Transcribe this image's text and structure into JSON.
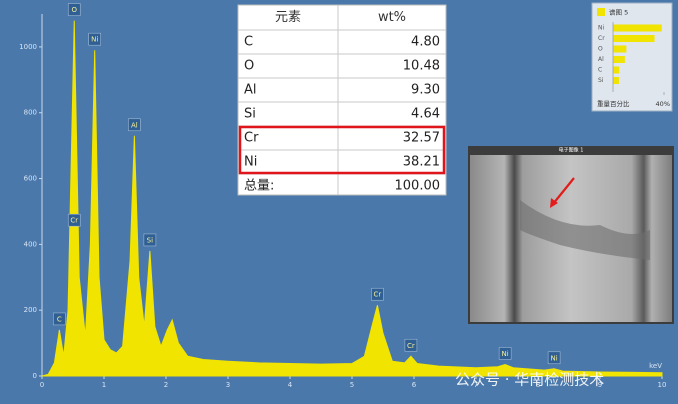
{
  "chart_data": [
    {
      "type": "area",
      "color": "#f0e400",
      "x": [
        0.0,
        0.1,
        0.2,
        0.28,
        0.35,
        0.42,
        0.52,
        0.6,
        0.7,
        0.78,
        0.85,
        0.92,
        1.0,
        1.1,
        1.2,
        1.3,
        1.42,
        1.49,
        1.56,
        1.65,
        1.74,
        1.82,
        1.92,
        2.02,
        2.1,
        2.2,
        2.35,
        2.6,
        3.0,
        3.5,
        4.0,
        4.5,
        5.0,
        5.2,
        5.32,
        5.41,
        5.5,
        5.65,
        5.85,
        5.95,
        6.05,
        6.4,
        7.0,
        7.35,
        7.47,
        7.6,
        8.1,
        8.26,
        8.4,
        9.0,
        10.0
      ],
      "values": [
        0,
        5,
        40,
        140,
        60,
        200,
        1080,
        300,
        120,
        400,
        990,
        300,
        110,
        80,
        70,
        90,
        350,
        730,
        300,
        150,
        380,
        150,
        90,
        140,
        170,
        100,
        60,
        50,
        45,
        40,
        38,
        36,
        38,
        60,
        150,
        215,
        130,
        45,
        40,
        60,
        38,
        30,
        25,
        28,
        35,
        25,
        18,
        22,
        15,
        12,
        10
      ],
      "xlim": [
        0,
        10
      ],
      "xticks": [
        0,
        1,
        2,
        3,
        4,
        5,
        6,
        7,
        8,
        9,
        10
      ],
      "xlabel": "keV",
      "ylim": [
        0,
        1100
      ],
      "yticks": [
        0,
        200,
        400,
        600,
        800,
        1000
      ],
      "peak_labels": [
        {
          "label": "C",
          "x": 0.28,
          "y": 140
        },
        {
          "label": "O",
          "x": 0.52,
          "y": 1080
        },
        {
          "label": "Cr",
          "x": 0.52,
          "y": 440
        },
        {
          "label": "Ni",
          "x": 0.85,
          "y": 990
        },
        {
          "label": "Al",
          "x": 1.49,
          "y": 730
        },
        {
          "label": "Si",
          "x": 1.74,
          "y": 380
        },
        {
          "label": "Cr",
          "x": 5.41,
          "y": 215
        },
        {
          "label": "Cr",
          "x": 5.95,
          "y": 60
        },
        {
          "label": "Ni",
          "x": 7.47,
          "y": 35
        },
        {
          "label": "Ni",
          "x": 8.26,
          "y": 22
        }
      ]
    },
    {
      "type": "bar",
      "color": "#f0e400",
      "legend": "谱图 5",
      "categories": [
        "Ni",
        "Cr",
        "O",
        "Al",
        "C",
        "Si"
      ],
      "values": [
        38.21,
        32.57,
        10.48,
        9.3,
        4.8,
        4.64
      ],
      "xlabel": "重量百分比",
      "xlim": [
        0,
        40
      ],
      "xticks": [
        {
          "value": 40,
          "label": "40%"
        }
      ]
    }
  ],
  "table": {
    "header": [
      "元素",
      "wt%"
    ],
    "rows": [
      [
        "C",
        "4.80"
      ],
      [
        "O",
        "10.48"
      ],
      [
        "Al",
        "9.30"
      ],
      [
        "Si",
        "4.64"
      ],
      [
        "Cr",
        "32.57"
      ],
      [
        "Ni",
        "38.21"
      ],
      [
        "总量:",
        "100.00"
      ]
    ],
    "highlight_rows": [
      4,
      5
    ]
  },
  "image": {
    "title": "电子图像 1"
  },
  "watermark": "公众号 · 华南检测技术"
}
